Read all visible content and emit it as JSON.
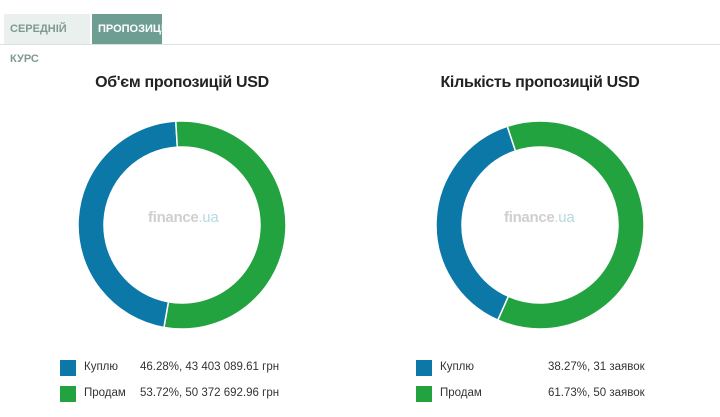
{
  "tabs": [
    {
      "label": "СЕРЕДНІЙ КУРС",
      "active": false
    },
    {
      "label": "ПРОПОЗИЦІЇ",
      "active": true
    }
  ],
  "colors": {
    "buy": "#0b78a8",
    "sell": "#22a33f"
  },
  "watermark": {
    "name": "finance",
    "dot": ".",
    "tld": "ua"
  },
  "chart_data": [
    {
      "type": "pie",
      "title": "Об'єм пропозицій USD",
      "series": [
        {
          "name": "Куплю",
          "percent": 46.28,
          "value_text": "46.28%, 43 403 089.61 грн"
        },
        {
          "name": "Продам",
          "percent": 53.72,
          "value_text": "53.72%, 50 372 692.96 грн"
        }
      ]
    },
    {
      "type": "pie",
      "title": "Кількість пропозицій USD",
      "series": [
        {
          "name": "Куплю",
          "percent": 38.27,
          "value_text": "38.27%, 31 заявок"
        },
        {
          "name": "Продам",
          "percent": 61.73,
          "value_text": "61.73%, 50 заявок"
        }
      ]
    }
  ]
}
